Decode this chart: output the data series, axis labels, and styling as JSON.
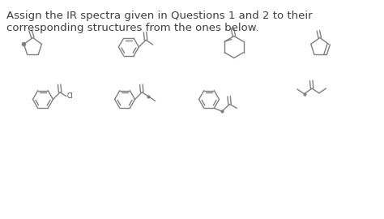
{
  "text_line1": "Assign the IR spectra given in Questions 1 and 2 to their",
  "text_line2": "corresponding structures from the ones below.",
  "bg_color": "#ffffff",
  "line_color": "#7f7f7f",
  "text_color": "#3f3f3f",
  "font_size": 9.5,
  "lw": 1.0
}
